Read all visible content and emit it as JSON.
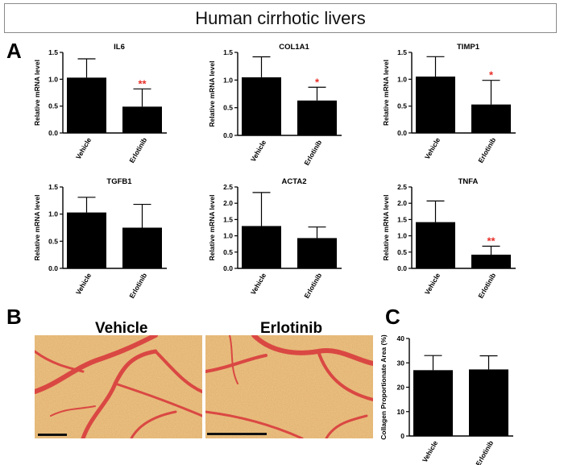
{
  "title": "Human cirrhotic livers",
  "panel_labels": {
    "a": "A",
    "b": "B",
    "c": "C"
  },
  "colors": {
    "bar": "#000000",
    "significance": "#e8302a",
    "stain_background": "#f2c27a",
    "stain_fibers": "#d83a3a"
  },
  "histology": {
    "vehicle_label": "Vehicle",
    "erlotinib_label": "Erlotinib",
    "description_fill": "picrosirius red stained liver section"
  },
  "chart_data": [
    {
      "type": "bar",
      "title": "IL6",
      "ylabel": "Relative mRNA level",
      "categories": [
        "Vehicle",
        "Erlotinib"
      ],
      "values": [
        1.03,
        0.49
      ],
      "errors": [
        0.35,
        0.33
      ],
      "significance": [
        "",
        "**"
      ],
      "ylim": [
        0,
        1.5
      ],
      "yticks": [
        "0.0",
        "0.5",
        "1.0",
        "1.5"
      ]
    },
    {
      "type": "bar",
      "title": "COL1A1",
      "ylabel": "Relative mRNA level",
      "categories": [
        "Vehicle",
        "Erlotinib"
      ],
      "values": [
        1.05,
        0.63
      ],
      "errors": [
        0.37,
        0.24
      ],
      "significance": [
        "",
        "*"
      ],
      "ylim": [
        0,
        1.5
      ],
      "yticks": [
        "0.0",
        "0.5",
        "1.0",
        "1.5"
      ]
    },
    {
      "type": "bar",
      "title": "TIMP1",
      "ylabel": "Relative mRNA level",
      "categories": [
        "Vehicle",
        "Erlotinib"
      ],
      "values": [
        1.05,
        0.53
      ],
      "errors": [
        0.37,
        0.45
      ],
      "significance": [
        "",
        "*"
      ],
      "ylim": [
        0,
        1.5
      ],
      "yticks": [
        "0.0",
        "0.5",
        "1.0",
        "1.5"
      ]
    },
    {
      "type": "bar",
      "title": "TGFB1",
      "ylabel": "Relative mRNA level",
      "categories": [
        "Vehicle",
        "Erlotinib"
      ],
      "values": [
        1.03,
        0.75
      ],
      "errors": [
        0.28,
        0.43
      ],
      "significance": [
        "",
        ""
      ],
      "ylim": [
        0,
        1.5
      ],
      "yticks": [
        "0.0",
        "0.5",
        "1.0",
        "1.5"
      ]
    },
    {
      "type": "bar",
      "title": "ACTA2",
      "ylabel": "Relative mRNA level",
      "categories": [
        "Vehicle",
        "Erlotinib"
      ],
      "values": [
        1.3,
        0.93
      ],
      "errors": [
        1.03,
        0.34
      ],
      "significance": [
        "",
        ""
      ],
      "ylim": [
        0,
        2.5
      ],
      "yticks": [
        "0.0",
        "0.5",
        "1.0",
        "1.5",
        "2.0",
        "2.5"
      ]
    },
    {
      "type": "bar",
      "title": "TNFA",
      "ylabel": "Relative mRNA level",
      "categories": [
        "Vehicle",
        "Erlotinib"
      ],
      "values": [
        1.42,
        0.42
      ],
      "errors": [
        0.65,
        0.26
      ],
      "significance": [
        "",
        "**"
      ],
      "ylim": [
        0,
        2.5
      ],
      "yticks": [
        "0.0",
        "0.5",
        "1.0",
        "1.5",
        "2.0",
        "2.5"
      ]
    },
    {
      "type": "bar",
      "title": "",
      "ylabel": "Collagen Proportionate Area (%)",
      "categories": [
        "Vehicle",
        "Erlotinib"
      ],
      "values": [
        27,
        27.3
      ],
      "errors": [
        6,
        5.6
      ],
      "significance": [
        "",
        ""
      ],
      "ylim": [
        0,
        40
      ],
      "yticks": [
        "0",
        "10",
        "20",
        "30",
        "40"
      ]
    }
  ]
}
